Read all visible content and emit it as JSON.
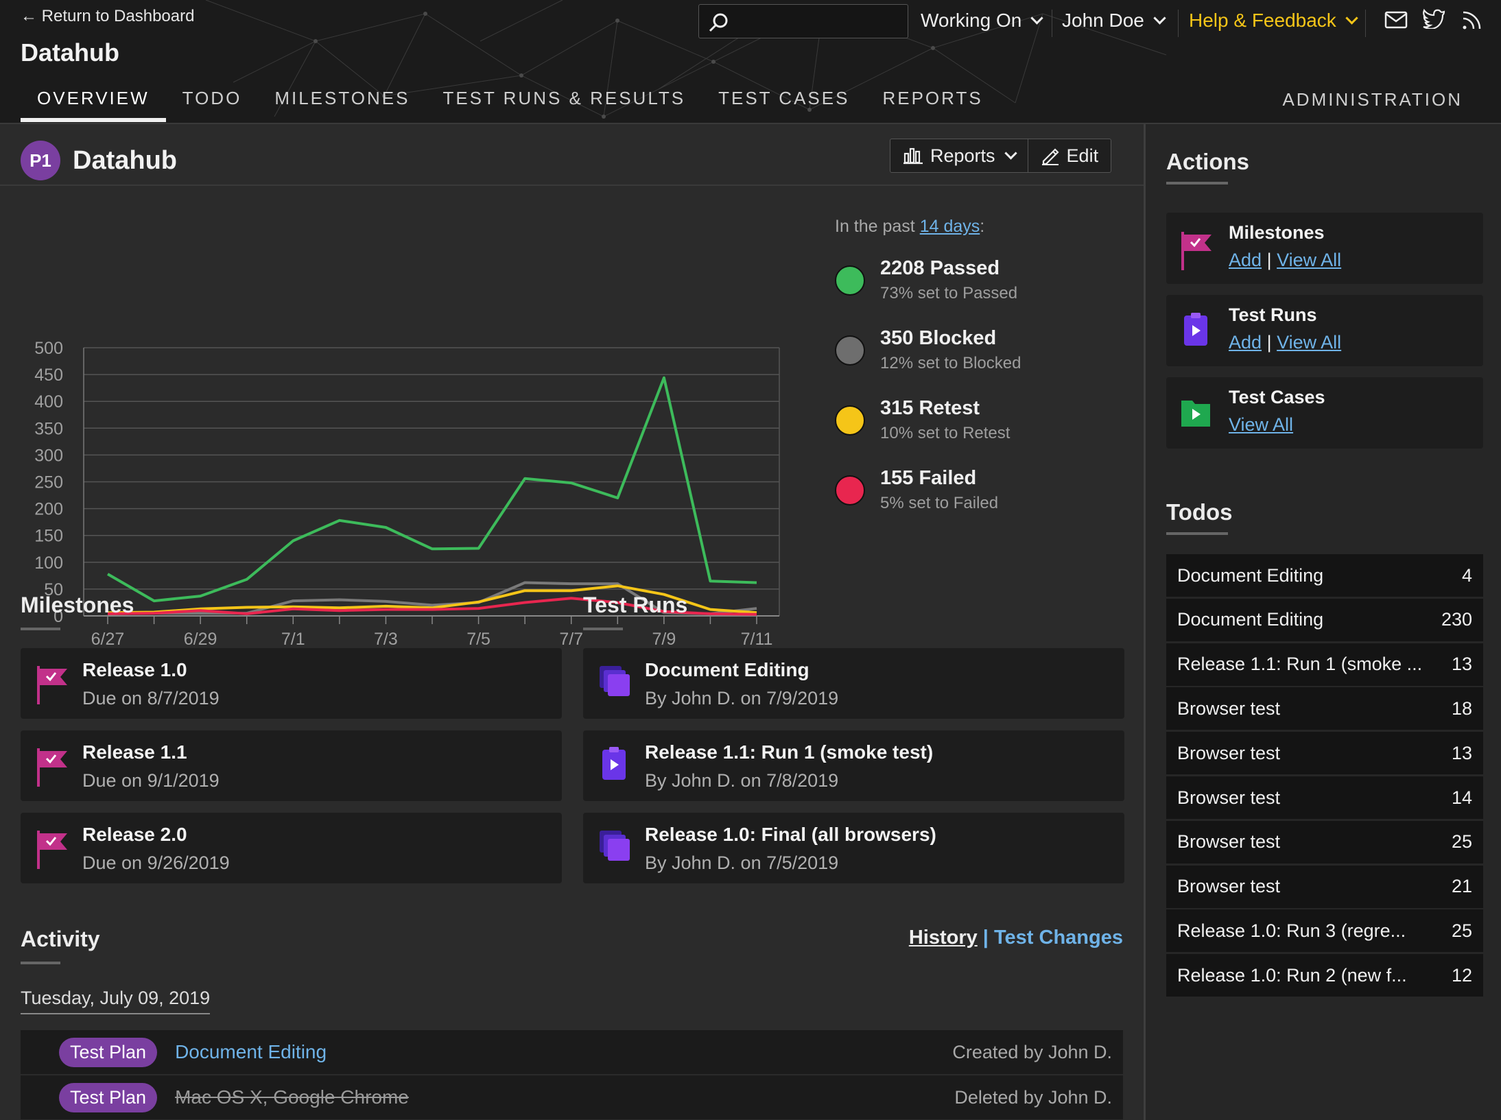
{
  "header": {
    "back_label": "Return to Dashboard",
    "project_name": "Datahub",
    "search_placeholder": "",
    "working_on": "Working On",
    "user": "John Doe",
    "help": "Help & Feedback",
    "help_color": "#f5c518"
  },
  "tabs": [
    "OVERVIEW",
    "TODO",
    "MILESTONES",
    "TEST RUNS & RESULTS",
    "TEST CASES",
    "REPORTS"
  ],
  "admin_label": "ADMINISTRATION",
  "project": {
    "badge": "P1",
    "title": "Datahub",
    "reports_btn": "Reports",
    "edit_btn": "Edit"
  },
  "legend": {
    "past_prefix": "In the past ",
    "past_link": "14 days",
    "past_suffix": ":",
    "items": [
      {
        "title": "2208 Passed",
        "sub": "73% set to Passed",
        "color": "#3dbb5b"
      },
      {
        "title": "350 Blocked",
        "sub": "12% set to Blocked",
        "color": "#6e6e6e"
      },
      {
        "title": "315 Retest",
        "sub": "10% set to Retest",
        "color": "#f5c518"
      },
      {
        "title": "155 Failed",
        "sub": "5% set to Failed",
        "color": "#e8264f"
      }
    ]
  },
  "chart_data": {
    "type": "line",
    "categories": [
      "6/27",
      "6/28",
      "6/29",
      "6/30",
      "7/1",
      "7/2",
      "7/3",
      "7/4",
      "7/5",
      "7/6",
      "7/7",
      "7/8",
      "7/9",
      "7/10",
      "7/11"
    ],
    "xticks": [
      "6/27",
      "6/29",
      "7/1",
      "7/3",
      "7/5",
      "7/7",
      "7/9",
      "7/11"
    ],
    "yticks": [
      0,
      50,
      100,
      150,
      200,
      250,
      300,
      350,
      400,
      450,
      500
    ],
    "ylim": [
      0,
      500
    ],
    "grid": true,
    "series": [
      {
        "name": "Passed",
        "color": "#3dbb5b",
        "values": [
          78,
          28,
          37,
          68,
          140,
          178,
          165,
          125,
          126,
          256,
          248,
          220,
          444,
          65,
          62
        ]
      },
      {
        "name": "Blocked",
        "color": "#7a7a7a",
        "values": [
          4,
          5,
          5,
          5,
          28,
          30,
          27,
          20,
          25,
          62,
          60,
          60,
          6,
          4,
          14
        ]
      },
      {
        "name": "Retest",
        "color": "#f5c518",
        "values": [
          6,
          7,
          13,
          16,
          17,
          15,
          18,
          15,
          26,
          47,
          47,
          56,
          40,
          12,
          6
        ]
      },
      {
        "name": "Failed",
        "color": "#e8264f",
        "values": [
          4,
          5,
          10,
          4,
          13,
          10,
          12,
          12,
          14,
          25,
          33,
          25,
          8,
          4,
          3
        ]
      }
    ]
  },
  "milestones": {
    "title": "Milestones",
    "items": [
      {
        "name": "Release 1.0",
        "sub": "Due on 8/7/2019"
      },
      {
        "name": "Release 1.1",
        "sub": "Due on 9/1/2019"
      },
      {
        "name": "Release 2.0",
        "sub": "Due on 9/26/2019"
      }
    ]
  },
  "test_runs": {
    "title": "Test Runs",
    "items": [
      {
        "name": "Document Editing",
        "sub": "By John D. on 7/9/2019",
        "icon": "plan-stack-icon"
      },
      {
        "name": "Release 1.1: Run 1 (smoke test)",
        "sub": "By John D. on 7/8/2019",
        "icon": "test-run-icon"
      },
      {
        "name": "Release 1.0: Final (all browsers)",
        "sub": "By John D. on 7/5/2019",
        "icon": "plan-stack-icon"
      }
    ]
  },
  "activity": {
    "title": "Activity",
    "history": "History",
    "sep": "|",
    "changes": "Test Changes",
    "date": "Tuesday, July 09, 2019",
    "rows": [
      {
        "tag": "Test Plan",
        "label": "Document Editing",
        "by": "Created by John D."
      },
      {
        "tag": "Test Plan",
        "label": "Mac OS X, Google Chrome",
        "by": "Deleted by John D."
      }
    ]
  },
  "actions": {
    "title": "Actions",
    "items": [
      {
        "name": "Milestones",
        "add": "Add",
        "sep": "|",
        "view": "View All"
      },
      {
        "name": "Test Runs",
        "add": "Add",
        "sep": "|",
        "view": "View All"
      },
      {
        "name": "Test Cases",
        "view": "View All"
      }
    ]
  },
  "todos": {
    "title": "Todos",
    "items": [
      {
        "name": "Document Editing",
        "count": "4"
      },
      {
        "name": "Document Editing",
        "count": "230"
      },
      {
        "name": "Release 1.1: Run 1 (smoke ...",
        "count": "13"
      },
      {
        "name": "Browser test",
        "count": "18"
      },
      {
        "name": "Browser test",
        "count": "13"
      },
      {
        "name": "Browser test",
        "count": "14"
      },
      {
        "name": "Browser test",
        "count": "25"
      },
      {
        "name": "Browser test",
        "count": "21"
      },
      {
        "name": "Release 1.0: Run 3 (regre...",
        "count": "25"
      },
      {
        "name": "Release 1.0: Run 2 (new f...",
        "count": "12"
      }
    ]
  }
}
